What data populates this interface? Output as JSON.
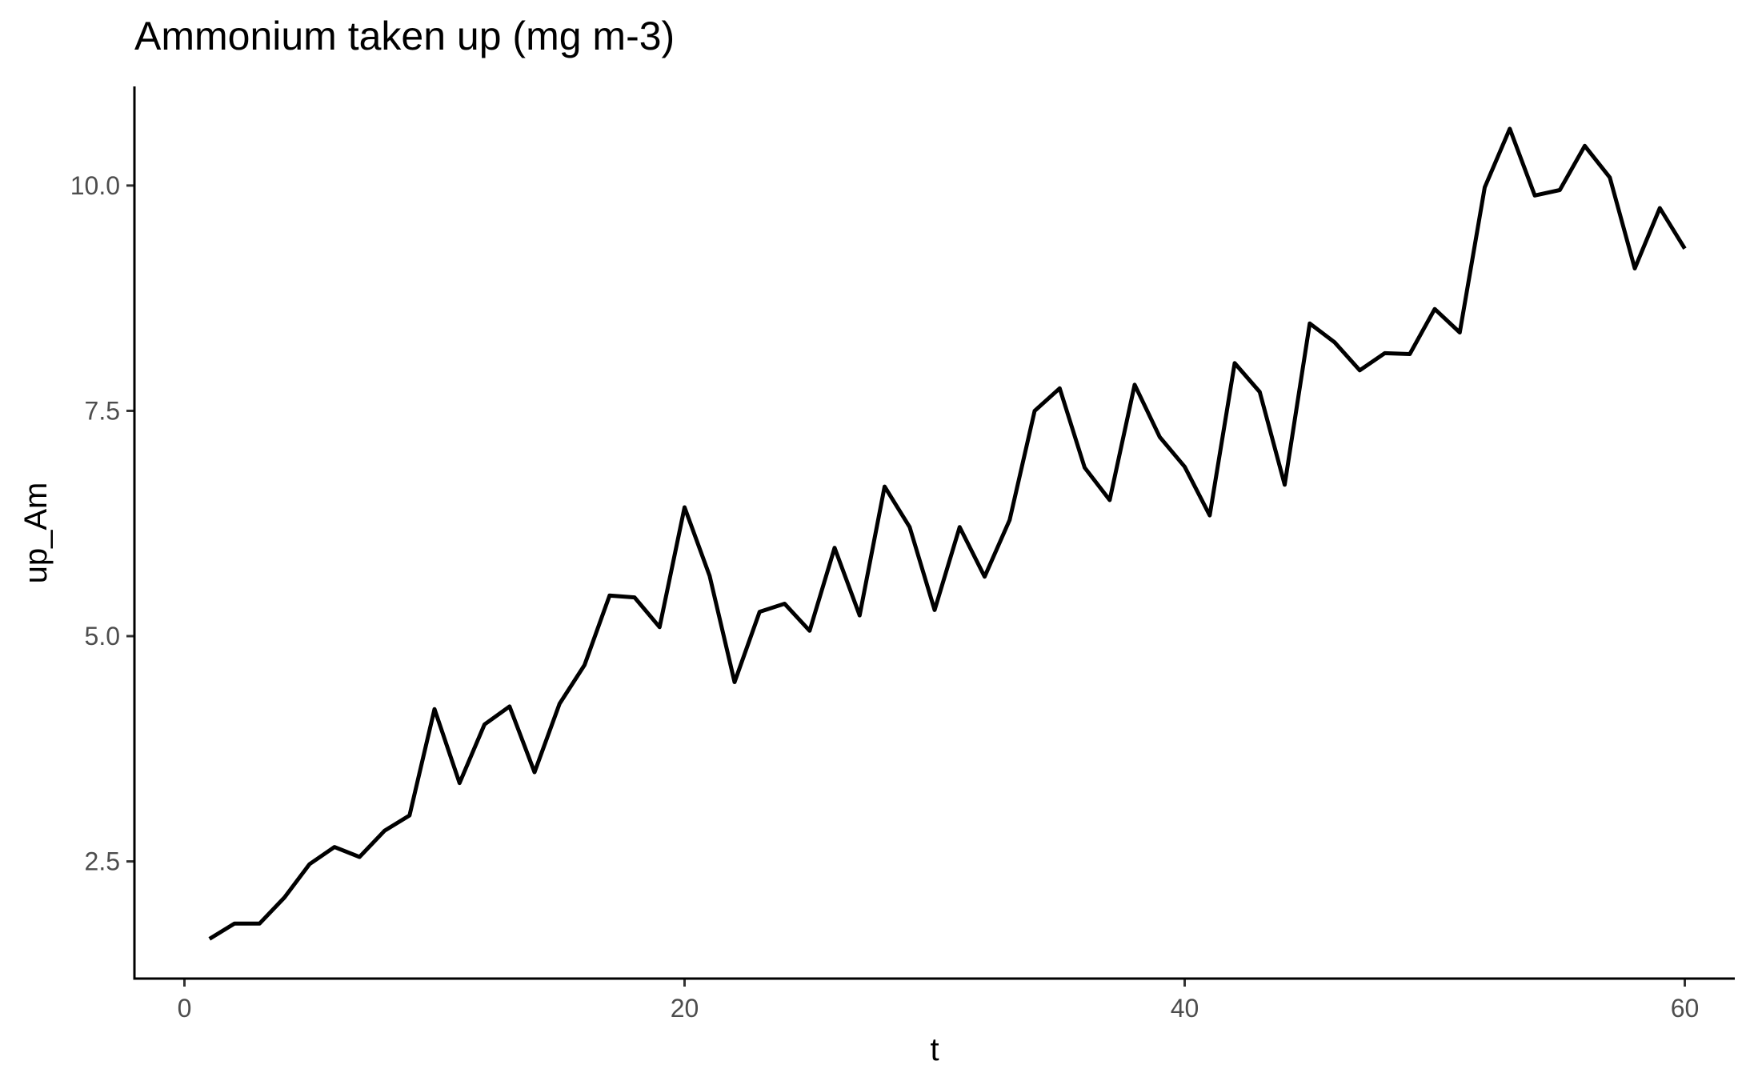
{
  "chart_data": {
    "type": "line",
    "title": "Ammonium taken up (mg m-3)",
    "xlabel": "t",
    "ylabel": "up_Am",
    "xlim": [
      -2,
      62
    ],
    "ylim": [
      1.2,
      11.1
    ],
    "xticks": [
      0,
      20,
      40,
      60
    ],
    "xtick_labels": [
      "0",
      "20",
      "40",
      "60"
    ],
    "yticks": [
      2.5,
      5.0,
      7.5,
      10.0
    ],
    "ytick_labels": [
      "2.5",
      "5.0",
      "7.5",
      "10.0"
    ],
    "grid": false,
    "legend": "none",
    "line_color": "#000000",
    "x": [
      1,
      2,
      3,
      4,
      5,
      6,
      7,
      8,
      9,
      10,
      11,
      12,
      13,
      14,
      15,
      16,
      17,
      18,
      19,
      20,
      21,
      22,
      23,
      24,
      25,
      26,
      27,
      28,
      29,
      30,
      31,
      32,
      33,
      34,
      35,
      36,
      37,
      38,
      39,
      40,
      41,
      42,
      43,
      44,
      45,
      46,
      47,
      48,
      49,
      50,
      51,
      52,
      53,
      54,
      55,
      56,
      57,
      58,
      59,
      60
    ],
    "y": [
      1.64,
      1.81,
      1.81,
      2.1,
      2.47,
      2.66,
      2.55,
      2.84,
      3.01,
      4.19,
      3.37,
      4.02,
      4.22,
      3.49,
      4.25,
      4.68,
      5.45,
      5.43,
      5.1,
      6.43,
      5.67,
      4.49,
      5.27,
      5.36,
      5.06,
      5.98,
      5.23,
      6.66,
      6.21,
      5.29,
      6.21,
      5.66,
      6.29,
      7.5,
      7.75,
      6.87,
      6.51,
      7.79,
      7.21,
      6.88,
      6.34,
      8.03,
      7.71,
      6.68,
      8.47,
      8.26,
      7.95,
      8.14,
      8.13,
      8.63,
      8.37,
      9.98,
      10.63,
      9.89,
      9.95,
      10.44,
      10.09,
      9.08,
      9.75,
      9.3
    ]
  }
}
